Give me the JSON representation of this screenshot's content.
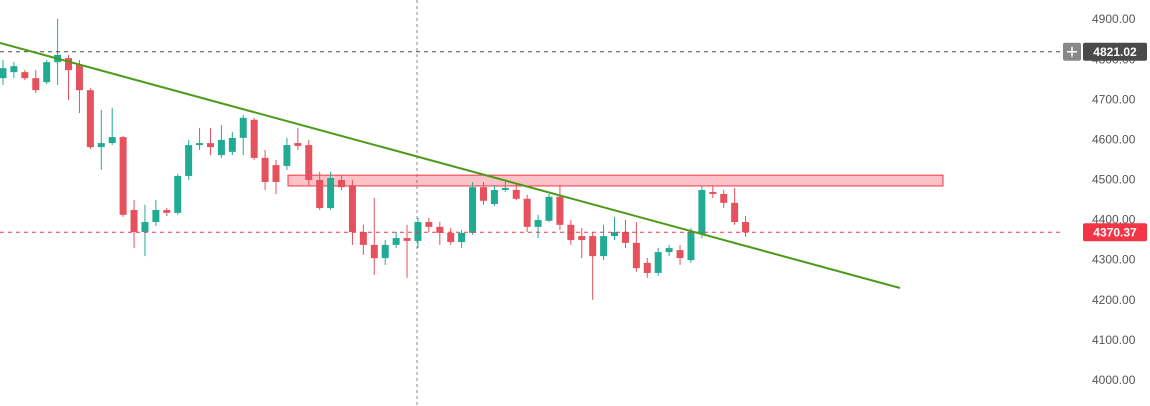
{
  "chart_data": {
    "type": "candlestick",
    "up_color": "#22ab94",
    "down_color": "#e5515c",
    "open": [
      4755,
      4770,
      4770,
      4755,
      4745,
      4795,
      4805,
      4788,
      4725,
      4583,
      4593,
      4608,
      4426,
      4371,
      4396,
      4426,
      4419,
      4511,
      4588,
      4593,
      4563,
      4571,
      4606,
      4651,
      4556,
      4538,
      4536,
      4593,
      4588,
      4501,
      4431,
      4501,
      4488,
      4371,
      4339,
      4306,
      4339,
      4356,
      4349,
      4396,
      4384,
      4369,
      4346,
      4369,
      4483,
      4441,
      4476,
      4476,
      4454,
      4384,
      4399,
      4459,
      4389,
      4361,
      4361,
      4311,
      4361,
      4371,
      4344,
      4294,
      4269,
      4321,
      4326,
      4301,
      4366,
      4471,
      4466,
      4444,
      4396
    ],
    "high": [
      4800,
      4795,
      4775,
      4775,
      4800,
      4903,
      4813,
      4800,
      4730,
      4676,
      4681,
      4611,
      4451,
      4439,
      4451,
      4431,
      4516,
      4601,
      4631,
      4631,
      4638,
      4621,
      4663,
      4656,
      4576,
      4551,
      4606,
      4631,
      4601,
      4521,
      4521,
      4513,
      4501,
      4389,
      4456,
      4351,
      4371,
      4389,
      4406,
      4406,
      4396,
      4381,
      4376,
      4496,
      4496,
      4488,
      4496,
      4491,
      4464,
      4414,
      4466,
      4488,
      4401,
      4381,
      4371,
      4389,
      4409,
      4401,
      4396,
      4306,
      4331,
      4339,
      4339,
      4381,
      4486,
      4488,
      4476,
      4481,
      4411
    ],
    "low": [
      4738,
      4755,
      4750,
      4718,
      4740,
      4738,
      4700,
      4668,
      4578,
      4526,
      4588,
      4409,
      4331,
      4311,
      4386,
      4411,
      4414,
      4501,
      4576,
      4563,
      4556,
      4563,
      4563,
      4551,
      4476,
      4466,
      4526,
      4576,
      4488,
      4426,
      4426,
      4476,
      4339,
      4314,
      4264,
      4289,
      4331,
      4257,
      4331,
      4371,
      4339,
      4339,
      4331,
      4364,
      4439,
      4436,
      4471,
      4451,
      4371,
      4356,
      4396,
      4376,
      4339,
      4306,
      4202,
      4301,
      4351,
      4331,
      4272,
      4257,
      4262,
      4311,
      4289,
      4294,
      4356,
      4456,
      4431,
      4389,
      4359
    ],
    "close": [
      4780,
      4785,
      4755,
      4725,
      4795,
      4813,
      4775,
      4725,
      4583,
      4593,
      4608,
      4414,
      4371,
      4396,
      4426,
      4419,
      4511,
      4588,
      4593,
      4583,
      4601,
      4606,
      4656,
      4556,
      4496,
      4496,
      4588,
      4586,
      4501,
      4431,
      4506,
      4483,
      4371,
      4339,
      4306,
      4339,
      4356,
      4349,
      4396,
      4384,
      4369,
      4346,
      4369,
      4483,
      4449,
      4476,
      4481,
      4454,
      4384,
      4401,
      4459,
      4389,
      4351,
      4351,
      4311,
      4361,
      4371,
      4344,
      4281,
      4269,
      4321,
      4331,
      4306,
      4371,
      4476,
      4466,
      4444,
      4396,
      4370.37
    ],
    "ylim": [
      3937,
      4950
    ],
    "yticks": [
      {
        "value": 4900,
        "label": "4900.00"
      },
      {
        "value": 4800,
        "label": "4800.00"
      },
      {
        "value": 4700,
        "label": "4700.00"
      },
      {
        "value": 4600,
        "label": "4600.00"
      },
      {
        "value": 4500,
        "label": "4500.00"
      },
      {
        "value": 4400,
        "label": "4400.00"
      },
      {
        "value": 4300,
        "label": "4300.00"
      },
      {
        "value": 4200,
        "label": "4200.00"
      },
      {
        "value": 4100,
        "label": "4100.00"
      },
      {
        "value": 4000,
        "label": "4000.00"
      }
    ],
    "price_lines": [
      {
        "value": 4821.02,
        "color": "#4a4a4a"
      },
      {
        "value": 4370.37,
        "color": "#f23645"
      }
    ],
    "zone": {
      "low": 4486,
      "high": 4513,
      "color": "#f23645"
    }
  }
}
